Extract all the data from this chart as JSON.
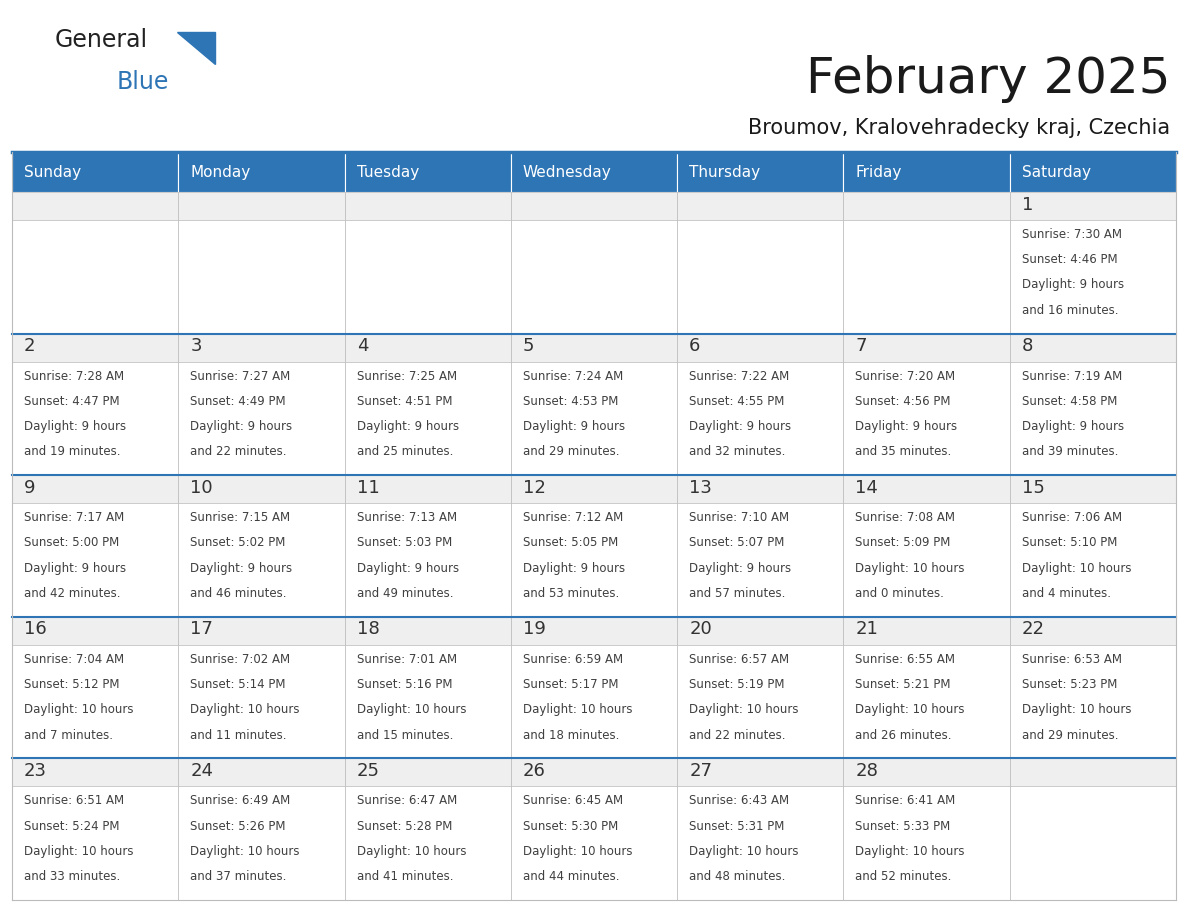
{
  "title": "February 2025",
  "subtitle": "Broumov, Kralovehradecky kraj, Czechia",
  "header_bg": "#2E75B6",
  "header_text": "#FFFFFF",
  "day_number_color": "#2E75B6",
  "cell_text_color": "#404040",
  "day_band_bg": "#EFEFEF",
  "cell_bg": "#FFFFFF",
  "border_color": "#BBBBBB",
  "week_sep_color": "#2E75B6",
  "days_of_week": [
    "Sunday",
    "Monday",
    "Tuesday",
    "Wednesday",
    "Thursday",
    "Friday",
    "Saturday"
  ],
  "weeks": [
    [
      {
        "day": "",
        "sunrise": "",
        "sunset": "",
        "daylight": ""
      },
      {
        "day": "",
        "sunrise": "",
        "sunset": "",
        "daylight": ""
      },
      {
        "day": "",
        "sunrise": "",
        "sunset": "",
        "daylight": ""
      },
      {
        "day": "",
        "sunrise": "",
        "sunset": "",
        "daylight": ""
      },
      {
        "day": "",
        "sunrise": "",
        "sunset": "",
        "daylight": ""
      },
      {
        "day": "",
        "sunrise": "",
        "sunset": "",
        "daylight": ""
      },
      {
        "day": "1",
        "sunrise": "7:30 AM",
        "sunset": "4:46 PM",
        "daylight": "9 hours and 16 minutes."
      }
    ],
    [
      {
        "day": "2",
        "sunrise": "7:28 AM",
        "sunset": "4:47 PM",
        "daylight": "9 hours and 19 minutes."
      },
      {
        "day": "3",
        "sunrise": "7:27 AM",
        "sunset": "4:49 PM",
        "daylight": "9 hours and 22 minutes."
      },
      {
        "day": "4",
        "sunrise": "7:25 AM",
        "sunset": "4:51 PM",
        "daylight": "9 hours and 25 minutes."
      },
      {
        "day": "5",
        "sunrise": "7:24 AM",
        "sunset": "4:53 PM",
        "daylight": "9 hours and 29 minutes."
      },
      {
        "day": "6",
        "sunrise": "7:22 AM",
        "sunset": "4:55 PM",
        "daylight": "9 hours and 32 minutes."
      },
      {
        "day": "7",
        "sunrise": "7:20 AM",
        "sunset": "4:56 PM",
        "daylight": "9 hours and 35 minutes."
      },
      {
        "day": "8",
        "sunrise": "7:19 AM",
        "sunset": "4:58 PM",
        "daylight": "9 hours and 39 minutes."
      }
    ],
    [
      {
        "day": "9",
        "sunrise": "7:17 AM",
        "sunset": "5:00 PM",
        "daylight": "9 hours and 42 minutes."
      },
      {
        "day": "10",
        "sunrise": "7:15 AM",
        "sunset": "5:02 PM",
        "daylight": "9 hours and 46 minutes."
      },
      {
        "day": "11",
        "sunrise": "7:13 AM",
        "sunset": "5:03 PM",
        "daylight": "9 hours and 49 minutes."
      },
      {
        "day": "12",
        "sunrise": "7:12 AM",
        "sunset": "5:05 PM",
        "daylight": "9 hours and 53 minutes."
      },
      {
        "day": "13",
        "sunrise": "7:10 AM",
        "sunset": "5:07 PM",
        "daylight": "9 hours and 57 minutes."
      },
      {
        "day": "14",
        "sunrise": "7:08 AM",
        "sunset": "5:09 PM",
        "daylight": "10 hours and 0 minutes."
      },
      {
        "day": "15",
        "sunrise": "7:06 AM",
        "sunset": "5:10 PM",
        "daylight": "10 hours and 4 minutes."
      }
    ],
    [
      {
        "day": "16",
        "sunrise": "7:04 AM",
        "sunset": "5:12 PM",
        "daylight": "10 hours and 7 minutes."
      },
      {
        "day": "17",
        "sunrise": "7:02 AM",
        "sunset": "5:14 PM",
        "daylight": "10 hours and 11 minutes."
      },
      {
        "day": "18",
        "sunrise": "7:01 AM",
        "sunset": "5:16 PM",
        "daylight": "10 hours and 15 minutes."
      },
      {
        "day": "19",
        "sunrise": "6:59 AM",
        "sunset": "5:17 PM",
        "daylight": "10 hours and 18 minutes."
      },
      {
        "day": "20",
        "sunrise": "6:57 AM",
        "sunset": "5:19 PM",
        "daylight": "10 hours and 22 minutes."
      },
      {
        "day": "21",
        "sunrise": "6:55 AM",
        "sunset": "5:21 PM",
        "daylight": "10 hours and 26 minutes."
      },
      {
        "day": "22",
        "sunrise": "6:53 AM",
        "sunset": "5:23 PM",
        "daylight": "10 hours and 29 minutes."
      }
    ],
    [
      {
        "day": "23",
        "sunrise": "6:51 AM",
        "sunset": "5:24 PM",
        "daylight": "10 hours and 33 minutes."
      },
      {
        "day": "24",
        "sunrise": "6:49 AM",
        "sunset": "5:26 PM",
        "daylight": "10 hours and 37 minutes."
      },
      {
        "day": "25",
        "sunrise": "6:47 AM",
        "sunset": "5:28 PM",
        "daylight": "10 hours and 41 minutes."
      },
      {
        "day": "26",
        "sunrise": "6:45 AM",
        "sunset": "5:30 PM",
        "daylight": "10 hours and 44 minutes."
      },
      {
        "day": "27",
        "sunrise": "6:43 AM",
        "sunset": "5:31 PM",
        "daylight": "10 hours and 48 minutes."
      },
      {
        "day": "28",
        "sunrise": "6:41 AM",
        "sunset": "5:33 PM",
        "daylight": "10 hours and 52 minutes."
      },
      {
        "day": "",
        "sunrise": "",
        "sunset": "",
        "daylight": ""
      }
    ]
  ],
  "fig_width": 11.88,
  "fig_height": 9.18,
  "dpi": 100
}
